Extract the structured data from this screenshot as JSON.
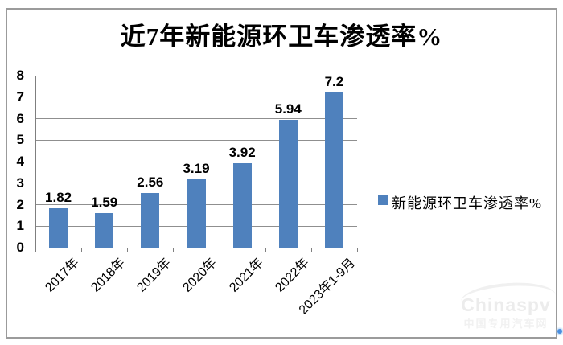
{
  "title": "近7年新能源环卫车渗透率%",
  "legend": {
    "label": "新能源环卫车渗透率%",
    "marker_color": "#4f81bd"
  },
  "chart_data": {
    "type": "bar",
    "title": "近7年新能源环卫车渗透率%",
    "categories": [
      "2017年",
      "2018年",
      "2019年",
      "2020年",
      "2021年",
      "2022年",
      "2023年1-9月"
    ],
    "values": [
      1.82,
      1.59,
      2.56,
      3.19,
      3.92,
      5.94,
      7.2
    ],
    "xlabel": "",
    "ylabel": "",
    "ylim": [
      0,
      8
    ],
    "ytick_interval": 1,
    "grid": true,
    "legend_entries": [
      "新能源环卫车渗透率%"
    ],
    "legend_position": "right",
    "bar_color": "#4f81bd",
    "data_labels_shown": true
  },
  "watermark": {
    "line1": "Chinaspv",
    "line2": "中国专用汽车网"
  },
  "colors": {
    "bar": "#4f81bd",
    "gridline": "#8f8f8f",
    "frame_border": "#9b9b9b",
    "corner_dot": "#4a8fe0",
    "text": "#000000"
  }
}
